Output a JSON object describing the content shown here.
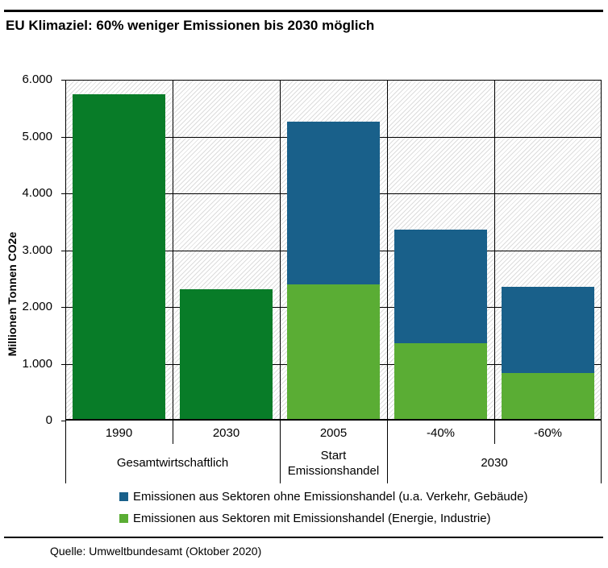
{
  "header": {
    "title": "EU Klimaziel: 60% weniger Emissionen bis 2030 möglich"
  },
  "footer": {
    "source": "Quelle: Umweltbundesamt (Oktober 2020)"
  },
  "colors": {
    "dark_green": "#087c28",
    "light_green": "#5aad34",
    "blue": "#19608a",
    "hatch": "#dcdcdc",
    "axis": "#000000"
  },
  "chart_data": {
    "type": "bar",
    "stacked": true,
    "background": "diagonal-hatch",
    "grid": true,
    "legend_position": "bottom-left",
    "ylabel": "Millionen Tonnen CO2e",
    "ylim": [
      0,
      6000
    ],
    "yticks": [
      {
        "value": 0,
        "label": "0"
      },
      {
        "value": 1000,
        "label": "1.000"
      },
      {
        "value": 2000,
        "label": "2.000"
      },
      {
        "value": 3000,
        "label": "3.000"
      },
      {
        "value": 4000,
        "label": "4.000"
      },
      {
        "value": 5000,
        "label": "5.000"
      },
      {
        "value": 6000,
        "label": "6.000"
      }
    ],
    "categories": [
      "1990",
      "2030",
      "2005",
      "-40%",
      "-60%"
    ],
    "category_groups": [
      {
        "label": "Gesamtwirtschaftlich",
        "start": 0,
        "end": 1
      },
      {
        "label": "Start Emissionshandel",
        "start": 2,
        "end": 2
      },
      {
        "label": "2030",
        "start": 3,
        "end": 4
      }
    ],
    "series": [
      {
        "name": "Emissionen aus Sektoren mit Emissionshandel (Energie, Industrie)",
        "color_key": "light_green",
        "values": [
          null,
          null,
          2370,
          1340,
          810
        ]
      },
      {
        "name": "Emissionen aus Sektoren ohne Emissionshandel (u.a. Verkehr, Gebäude)",
        "color_key": "blue",
        "values": [
          null,
          null,
          2860,
          1990,
          1520
        ]
      },
      {
        "name": "",
        "color_key": "dark_green",
        "values": [
          5720,
          2290,
          null,
          null,
          null
        ]
      }
    ],
    "legend": [
      {
        "label": "Emissionen aus Sektoren ohne Emissionshandel (u.a. Verkehr, Gebäude)",
        "color_key": "blue"
      },
      {
        "label": "Emissionen aus Sektoren mit Emissionshandel (Energie, Industrie)",
        "color_key": "light_green"
      }
    ]
  }
}
